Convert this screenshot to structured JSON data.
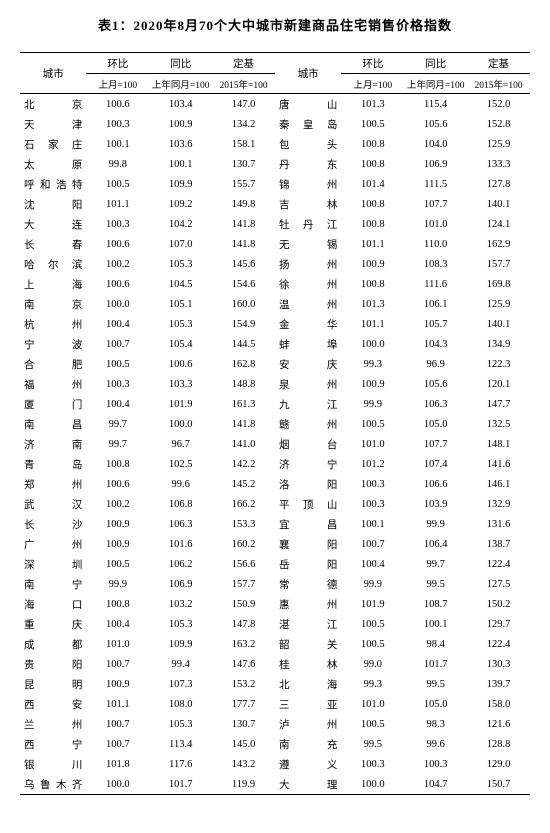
{
  "title": "表1：2020年8月70个大中城市新建商品住宅销售价格指数",
  "headers": {
    "city": "城市",
    "mom": "环比",
    "yoy": "同比",
    "base": "定基",
    "mom_sub": "上月=100",
    "yoy_sub": "上年同月=100",
    "base_sub": "2015年=100"
  },
  "styling": {
    "background_color": "#ffffff",
    "text_color": "#000000",
    "border_color": "#000000",
    "title_fontsize": 13,
    "header_fontsize": 10.5,
    "body_fontsize": 10.5
  },
  "rows": [
    {
      "c1": "北　　京",
      "v1": "100.6",
      "v2": "103.4",
      "v3": "147.0",
      "c2": "唐　　山",
      "v4": "101.3",
      "v5": "115.4",
      "v6": "152.0"
    },
    {
      "c1": "天　　津",
      "v1": "100.3",
      "v2": "100.9",
      "v3": "134.2",
      "c2": "秦 皇 岛",
      "v4": "100.5",
      "v5": "105.6",
      "v6": "152.8"
    },
    {
      "c1": "石 家 庄",
      "v1": "100.1",
      "v2": "103.6",
      "v3": "158.1",
      "c2": "包　　头",
      "v4": "100.8",
      "v5": "104.0",
      "v6": "125.9"
    },
    {
      "c1": "太　　原",
      "v1": "99.8",
      "v2": "100.1",
      "v3": "130.7",
      "c2": "丹　　东",
      "v4": "100.8",
      "v5": "106.9",
      "v6": "133.3"
    },
    {
      "c1": "呼和浩特",
      "v1": "100.5",
      "v2": "109.9",
      "v3": "155.7",
      "c2": "锦　　州",
      "v4": "101.4",
      "v5": "111.5",
      "v6": "127.8"
    },
    {
      "c1": "沈　　阳",
      "v1": "101.1",
      "v2": "109.2",
      "v3": "149.8",
      "c2": "吉　　林",
      "v4": "100.8",
      "v5": "107.7",
      "v6": "140.1"
    },
    {
      "c1": "大　　连",
      "v1": "100.3",
      "v2": "104.2",
      "v3": "141.8",
      "c2": "牡 丹 江",
      "v4": "100.8",
      "v5": "101.0",
      "v6": "124.1"
    },
    {
      "c1": "长　　春",
      "v1": "100.6",
      "v2": "107.0",
      "v3": "141.8",
      "c2": "无　　锡",
      "v4": "101.1",
      "v5": "110.0",
      "v6": "162.9"
    },
    {
      "c1": "哈 尔 滨",
      "v1": "100.2",
      "v2": "105.3",
      "v3": "145.6",
      "c2": "扬　　州",
      "v4": "100.9",
      "v5": "108.3",
      "v6": "157.7"
    },
    {
      "c1": "上　　海",
      "v1": "100.6",
      "v2": "104.5",
      "v3": "154.6",
      "c2": "徐　　州",
      "v4": "100.8",
      "v5": "111.6",
      "v6": "169.8"
    },
    {
      "c1": "南　　京",
      "v1": "100.0",
      "v2": "105.1",
      "v3": "160.0",
      "c2": "温　　州",
      "v4": "101.3",
      "v5": "106.1",
      "v6": "125.9"
    },
    {
      "c1": "杭　　州",
      "v1": "100.4",
      "v2": "105.3",
      "v3": "154.9",
      "c2": "金　　华",
      "v4": "101.1",
      "v5": "105.7",
      "v6": "140.1"
    },
    {
      "c1": "宁　　波",
      "v1": "100.7",
      "v2": "105.4",
      "v3": "144.5",
      "c2": "蚌　　埠",
      "v4": "100.0",
      "v5": "104.3",
      "v6": "134.9"
    },
    {
      "c1": "合　　肥",
      "v1": "100.5",
      "v2": "100.6",
      "v3": "162.8",
      "c2": "安　　庆",
      "v4": "99.3",
      "v5": "96.9",
      "v6": "122.3"
    },
    {
      "c1": "福　　州",
      "v1": "100.3",
      "v2": "103.3",
      "v3": "148.8",
      "c2": "泉　　州",
      "v4": "100.9",
      "v5": "105.6",
      "v6": "120.1"
    },
    {
      "c1": "厦　　门",
      "v1": "100.4",
      "v2": "101.9",
      "v3": "161.3",
      "c2": "九　　江",
      "v4": "99.9",
      "v5": "106.3",
      "v6": "147.7"
    },
    {
      "c1": "南　　昌",
      "v1": "99.7",
      "v2": "100.0",
      "v3": "141.8",
      "c2": "赣　　州",
      "v4": "100.5",
      "v5": "105.0",
      "v6": "132.5"
    },
    {
      "c1": "济　　南",
      "v1": "99.7",
      "v2": "96.7",
      "v3": "141.0",
      "c2": "烟　　台",
      "v4": "101.0",
      "v5": "107.7",
      "v6": "148.1"
    },
    {
      "c1": "青　　岛",
      "v1": "100.8",
      "v2": "102.5",
      "v3": "142.2",
      "c2": "济　　宁",
      "v4": "101.2",
      "v5": "107.4",
      "v6": "141.6"
    },
    {
      "c1": "郑　　州",
      "v1": "100.6",
      "v2": "99.6",
      "v3": "145.2",
      "c2": "洛　　阳",
      "v4": "100.3",
      "v5": "106.6",
      "v6": "146.1"
    },
    {
      "c1": "武　　汉",
      "v1": "100.2",
      "v2": "106.8",
      "v3": "166.2",
      "c2": "平 顶 山",
      "v4": "100.3",
      "v5": "103.9",
      "v6": "132.9"
    },
    {
      "c1": "长　　沙",
      "v1": "100.9",
      "v2": "106.3",
      "v3": "153.3",
      "c2": "宜　　昌",
      "v4": "100.1",
      "v5": "99.9",
      "v6": "131.6"
    },
    {
      "c1": "广　　州",
      "v1": "100.9",
      "v2": "101.6",
      "v3": "160.2",
      "c2": "襄　　阳",
      "v4": "100.7",
      "v5": "106.4",
      "v6": "138.7"
    },
    {
      "c1": "深　　圳",
      "v1": "100.5",
      "v2": "106.2",
      "v3": "156.6",
      "c2": "岳　　阳",
      "v4": "100.4",
      "v5": "99.7",
      "v6": "122.4"
    },
    {
      "c1": "南　　宁",
      "v1": "99.9",
      "v2": "106.9",
      "v3": "157.7",
      "c2": "常　　德",
      "v4": "99.9",
      "v5": "99.5",
      "v6": "127.5"
    },
    {
      "c1": "海　　口",
      "v1": "100.8",
      "v2": "103.2",
      "v3": "150.9",
      "c2": "惠　　州",
      "v4": "101.9",
      "v5": "108.7",
      "v6": "150.2"
    },
    {
      "c1": "重　　庆",
      "v1": "100.4",
      "v2": "105.3",
      "v3": "147.8",
      "c2": "湛　　江",
      "v4": "100.5",
      "v5": "100.1",
      "v6": "129.7"
    },
    {
      "c1": "成　　都",
      "v1": "101.0",
      "v2": "109.9",
      "v3": "163.2",
      "c2": "韶　　关",
      "v4": "100.5",
      "v5": "98.4",
      "v6": "122.4"
    },
    {
      "c1": "贵　　阳",
      "v1": "100.7",
      "v2": "99.4",
      "v3": "147.6",
      "c2": "桂　　林",
      "v4": "99.0",
      "v5": "101.7",
      "v6": "130.3"
    },
    {
      "c1": "昆　　明",
      "v1": "100.9",
      "v2": "107.3",
      "v3": "153.2",
      "c2": "北　　海",
      "v4": "99.3",
      "v5": "99.5",
      "v6": "139.7"
    },
    {
      "c1": "西　　安",
      "v1": "101.1",
      "v2": "108.0",
      "v3": "177.7",
      "c2": "三　　亚",
      "v4": "101.0",
      "v5": "105.0",
      "v6": "158.0"
    },
    {
      "c1": "兰　　州",
      "v1": "100.7",
      "v2": "105.3",
      "v3": "130.7",
      "c2": "泸　　州",
      "v4": "100.5",
      "v5": "98.3",
      "v6": "121.6"
    },
    {
      "c1": "西　　宁",
      "v1": "100.7",
      "v2": "113.4",
      "v3": "145.0",
      "c2": "南　　充",
      "v4": "99.5",
      "v5": "99.6",
      "v6": "128.8"
    },
    {
      "c1": "银　　川",
      "v1": "101.8",
      "v2": "117.6",
      "v3": "143.2",
      "c2": "遵　　义",
      "v4": "100.3",
      "v5": "100.3",
      "v6": "129.0"
    },
    {
      "c1": "乌鲁木齐",
      "v1": "100.0",
      "v2": "101.7",
      "v3": "119.9",
      "c2": "大　　理",
      "v4": "100.0",
      "v5": "104.7",
      "v6": "150.7"
    }
  ]
}
